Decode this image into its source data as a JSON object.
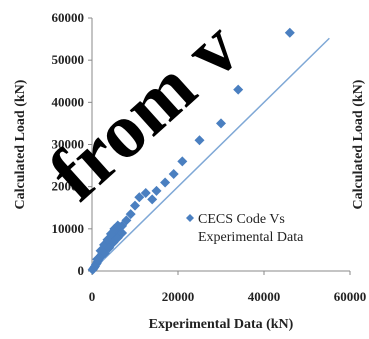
{
  "chart_data": {
    "type": "scatter",
    "xlabel": "Experimental Data (kN)",
    "ylabel": "Calculated Load (kN)",
    "ylabel_right": "Calculated Load (kN)",
    "xlim": [
      0,
      60000
    ],
    "ylim": [
      0,
      60000
    ],
    "x_ticks": [
      0,
      20000,
      40000,
      60000
    ],
    "y_ticks": [
      0,
      10000,
      20000,
      30000,
      40000,
      50000,
      60000
    ],
    "grid": false,
    "legend_position": "right-middle",
    "reference_line": {
      "type": "y=x",
      "color": "#7FA8D6"
    },
    "series": [
      {
        "name": "CECS Code Vs Experimental Data",
        "color": "#4A7FC0",
        "marker": "diamond",
        "points": [
          [
            150,
            300
          ],
          [
            300,
            500
          ],
          [
            500,
            800
          ],
          [
            700,
            1100
          ],
          [
            900,
            1500
          ],
          [
            1100,
            1800
          ],
          [
            1300,
            2200
          ],
          [
            1500,
            2600
          ],
          [
            1700,
            3000
          ],
          [
            1900,
            3300
          ],
          [
            2100,
            3700
          ],
          [
            2300,
            4000
          ],
          [
            2500,
            4400
          ],
          [
            2700,
            4700
          ],
          [
            2900,
            5000
          ],
          [
            3100,
            5400
          ],
          [
            3300,
            5800
          ],
          [
            3500,
            6100
          ],
          [
            3700,
            6500
          ],
          [
            3900,
            6900
          ],
          [
            4100,
            7200
          ],
          [
            4300,
            7600
          ],
          [
            4500,
            8000
          ],
          [
            4700,
            8300
          ],
          [
            4900,
            8600
          ],
          [
            5100,
            8900
          ],
          [
            5300,
            9200
          ],
          [
            5600,
            9500
          ],
          [
            5900,
            9800
          ],
          [
            6200,
            10100
          ],
          [
            6500,
            10400
          ],
          [
            7000,
            10700
          ],
          [
            1200,
            2800
          ],
          [
            2000,
            4800
          ],
          [
            2800,
            6200
          ],
          [
            3600,
            7400
          ],
          [
            4400,
            8800
          ],
          [
            5200,
            10000
          ],
          [
            6000,
            10800
          ],
          [
            3000,
            4200
          ],
          [
            4000,
            5500
          ],
          [
            5000,
            6800
          ],
          [
            6000,
            7900
          ],
          [
            7000,
            9000
          ],
          [
            8000,
            12000
          ],
          [
            9000,
            13500
          ],
          [
            10000,
            15500
          ],
          [
            11000,
            17500
          ],
          [
            12500,
            18500
          ],
          [
            14000,
            17000
          ],
          [
            15000,
            19000
          ],
          [
            17000,
            21000
          ],
          [
            19000,
            23000
          ],
          [
            21000,
            26000
          ],
          [
            25000,
            31000
          ],
          [
            30000,
            35000
          ],
          [
            34000,
            43000
          ],
          [
            46000,
            56500
          ]
        ]
      }
    ],
    "overlay_text": "from v"
  }
}
